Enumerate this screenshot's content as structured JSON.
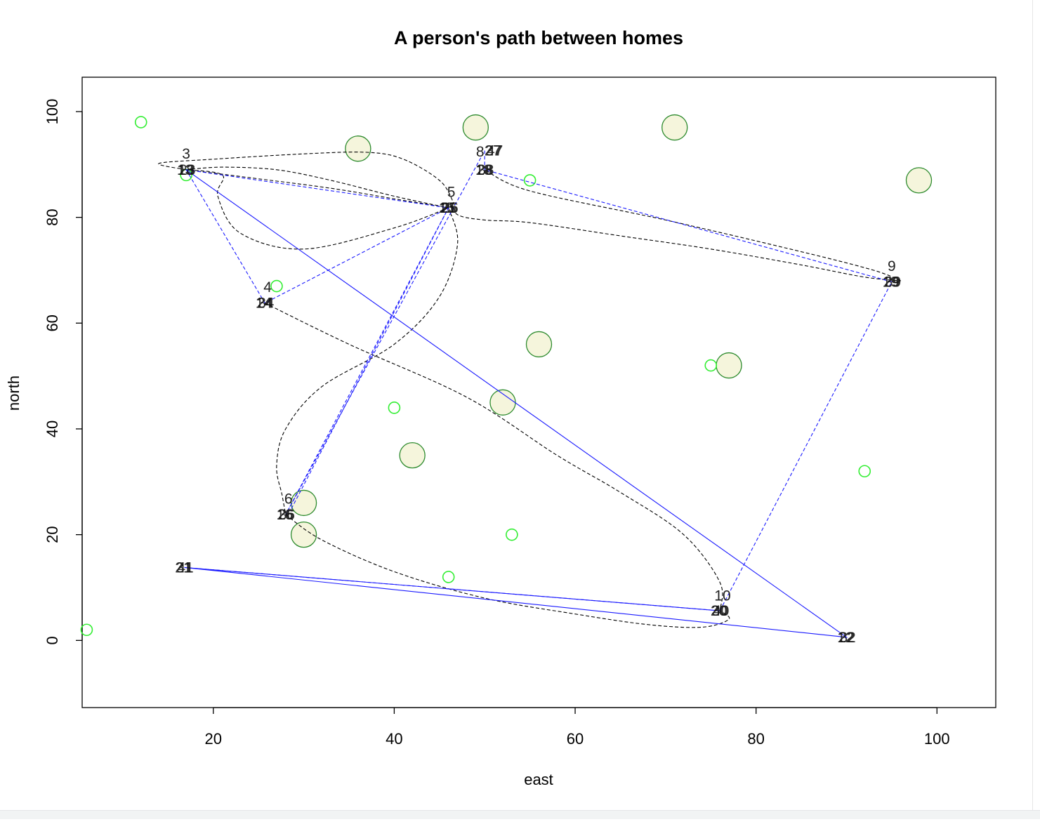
{
  "chart_data": {
    "type": "scatter",
    "title": "A person's path between homes",
    "xlabel": "east",
    "ylabel": "north",
    "xlim": [
      5.5,
      106.5
    ],
    "ylim": [
      -12.7,
      106.5
    ],
    "xticks": [
      20,
      40,
      60,
      80,
      100
    ],
    "yticks": [
      0,
      20,
      40,
      60,
      80,
      100
    ],
    "grid": false,
    "colors": {
      "small_marker": "#33ee33",
      "large_marker_fill": "#f5f5dc",
      "large_marker_stroke": "#2e8b2e",
      "path_straight": "#1a1aff",
      "path_curved": "#000000",
      "axis": "#000000"
    },
    "small_points": [
      {
        "x": 12,
        "y": 98
      },
      {
        "x": 17,
        "y": 88
      },
      {
        "x": 27,
        "y": 67
      },
      {
        "x": 55,
        "y": 87
      },
      {
        "x": 75,
        "y": 52
      },
      {
        "x": 40,
        "y": 44
      },
      {
        "x": 92,
        "y": 32
      },
      {
        "x": 53,
        "y": 20
      },
      {
        "x": 46,
        "y": 12
      },
      {
        "x": 6,
        "y": 2
      }
    ],
    "large_points": [
      {
        "x": 36,
        "y": 93
      },
      {
        "x": 49,
        "y": 97
      },
      {
        "x": 71,
        "y": 97
      },
      {
        "x": 98,
        "y": 87
      },
      {
        "x": 56,
        "y": 56
      },
      {
        "x": 77,
        "y": 52
      },
      {
        "x": 52,
        "y": 45
      },
      {
        "x": 42,
        "y": 35
      },
      {
        "x": 30,
        "y": 26
      },
      {
        "x": 30,
        "y": 20
      }
    ],
    "homes": [
      {
        "x": 17,
        "y": 89
      },
      {
        "x": 25.7,
        "y": 63.8
      },
      {
        "x": 46,
        "y": 81.8
      },
      {
        "x": 28,
        "y": 23.8
      },
      {
        "x": 50,
        "y": 89
      },
      {
        "x": 95,
        "y": 67.8
      },
      {
        "x": 76,
        "y": 5.6
      },
      {
        "x": 90,
        "y": 0.6
      },
      {
        "x": 16.8,
        "y": 13.8
      }
    ],
    "home_labels": [
      {
        "text": "3",
        "x": 17,
        "y": 92
      },
      {
        "text": "4",
        "x": 26,
        "y": 66.8
      },
      {
        "text": "5",
        "x": 46.3,
        "y": 84.8
      },
      {
        "text": "6",
        "x": 28.3,
        "y": 26.8
      },
      {
        "text": "8",
        "x": 49.5,
        "y": 92.4
      },
      {
        "text": "9",
        "x": 95,
        "y": 70.8
      },
      {
        "text": "10",
        "x": 76.3,
        "y": 8.5
      }
    ],
    "stacked_labels": [
      {
        "texts": [
          "13",
          "18",
          "23"
        ],
        "x": 17,
        "y": 89
      },
      {
        "texts": [
          "14",
          "24",
          "34"
        ],
        "x": 25.7,
        "y": 63.8
      },
      {
        "texts": [
          "15",
          "21",
          "25",
          "26"
        ],
        "x": 46,
        "y": 81.8
      },
      {
        "texts": [
          "16",
          "26",
          "36"
        ],
        "x": 28,
        "y": 23.8
      },
      {
        "texts": [
          "27",
          "37",
          "47"
        ],
        "x": 51,
        "y": 92.6
      },
      {
        "texts": [
          "18",
          "28",
          "38"
        ],
        "x": 50,
        "y": 89
      },
      {
        "texts": [
          "19",
          "29",
          "39"
        ],
        "x": 95,
        "y": 67.8
      },
      {
        "texts": [
          "20",
          "30",
          "40"
        ],
        "x": 76,
        "y": 5.6
      },
      {
        "texts": [
          "12",
          "22",
          "32"
        ],
        "x": 90,
        "y": 0.6
      },
      {
        "texts": [
          "21",
          "31",
          "41"
        ],
        "x": 16.8,
        "y": 13.8
      }
    ],
    "straight_paths": [
      {
        "dashed": false,
        "points": [
          [
            17,
            89
          ],
          [
            90,
            0.6
          ],
          [
            16.8,
            13.8
          ],
          [
            76,
            5.6
          ]
        ]
      },
      {
        "dashed": true,
        "points": [
          [
            17,
            89
          ],
          [
            25.7,
            63.8
          ],
          [
            46,
            81.8
          ],
          [
            28,
            23.8
          ],
          [
            50,
            92.6
          ],
          [
            50,
            89
          ],
          [
            95,
            67.8
          ],
          [
            76,
            5.6
          ],
          [
            16.8,
            13.8
          ]
        ]
      },
      {
        "dashed": true,
        "points": [
          [
            17,
            89
          ],
          [
            46,
            81.8
          ],
          [
            28.5,
            24.5
          ]
        ]
      }
    ],
    "curved_paths": [
      {
        "points": [
          [
            17,
            89
          ],
          [
            14,
            90.2
          ],
          [
            20,
            91
          ],
          [
            30,
            92
          ],
          [
            37,
            92.3
          ],
          [
            41,
            91
          ],
          [
            45,
            87
          ],
          [
            46.5,
            83
          ],
          [
            47,
            80.5
          ],
          [
            50,
            79.5
          ],
          [
            55,
            79
          ],
          [
            65,
            76.5
          ],
          [
            75,
            74
          ],
          [
            85,
            71
          ],
          [
            92,
            68.7
          ],
          [
            96,
            68
          ]
        ]
      },
      {
        "points": [
          [
            96,
            68
          ],
          [
            93,
            70
          ],
          [
            85,
            73.5
          ],
          [
            70,
            79.5
          ],
          [
            55,
            85
          ],
          [
            50,
            89
          ]
        ]
      },
      {
        "points": [
          [
            17,
            89
          ],
          [
            24,
            87.5
          ],
          [
            33,
            85.5
          ],
          [
            40,
            83.5
          ],
          [
            46,
            81.8
          ]
        ]
      },
      {
        "points": [
          [
            17,
            89
          ],
          [
            21,
            89.5
          ],
          [
            27,
            89
          ],
          [
            33,
            87
          ],
          [
            40,
            84
          ],
          [
            46,
            81.8
          ]
        ]
      },
      {
        "points": [
          [
            46,
            81.8
          ],
          [
            47,
            75
          ],
          [
            45,
            65
          ],
          [
            40,
            56
          ],
          [
            32,
            48
          ],
          [
            28,
            40
          ],
          [
            27,
            33
          ],
          [
            27.6,
            27.5
          ],
          [
            28,
            23.8
          ]
        ]
      },
      {
        "points": [
          [
            46,
            81.8
          ],
          [
            40,
            78
          ],
          [
            30,
            74
          ],
          [
            23,
            77
          ],
          [
            20.5,
            84
          ],
          [
            21,
            88
          ],
          [
            17,
            89
          ]
        ]
      },
      {
        "points": [
          [
            25.7,
            63.8
          ],
          [
            35,
            56
          ],
          [
            48,
            46
          ],
          [
            58,
            35
          ],
          [
            65,
            28
          ],
          [
            72,
            20
          ],
          [
            76,
            11
          ],
          [
            76,
            5.6
          ]
        ]
      },
      {
        "points": [
          [
            28,
            23.8
          ],
          [
            32,
            19
          ],
          [
            40,
            13
          ],
          [
            50,
            8
          ],
          [
            60,
            5
          ],
          [
            68,
            3
          ],
          [
            74,
            2.5
          ],
          [
            77,
            4
          ],
          [
            76,
            5.6
          ]
        ]
      }
    ]
  }
}
